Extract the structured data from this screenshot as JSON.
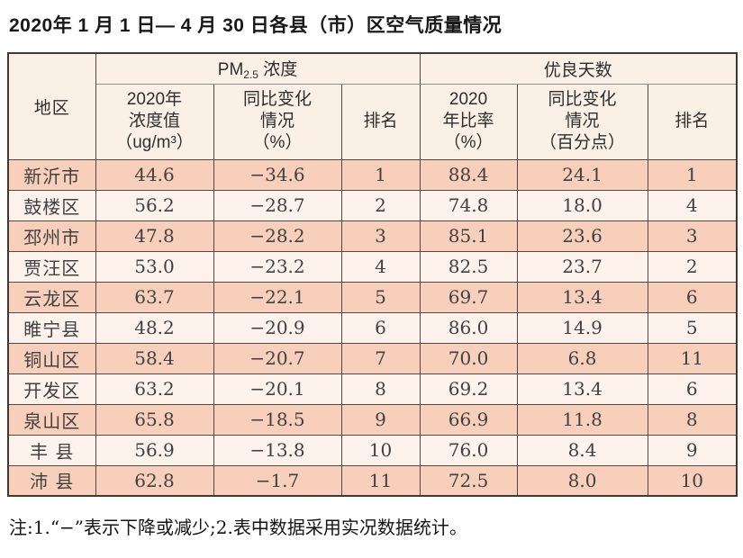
{
  "title": "2020年 1 月 1 日— 4 月 30 日各县（市）区空气质量情况",
  "table": {
    "region_header": "地区",
    "pm_group": {
      "prefix": "PM",
      "sub": "2.5",
      "suffix": " 浓度"
    },
    "good_days_header": "优良天数",
    "sub_headers": [
      "2020年\n浓度值\n（ug/m³）",
      "同比变化\n情况\n（%）",
      "排名",
      "2020\n年比率\n（%）",
      "同比变化\n情况\n（百分点）",
      "排名"
    ],
    "rows": [
      [
        "新沂市",
        "44.6",
        "−34.6",
        "1",
        "88.4",
        "24.1",
        "1"
      ],
      [
        "鼓楼区",
        "56.2",
        "−28.7",
        "2",
        "74.8",
        "18.0",
        "4"
      ],
      [
        "邳州市",
        "47.8",
        "−28.2",
        "3",
        "85.1",
        "23.6",
        "3"
      ],
      [
        "贾汪区",
        "53.0",
        "−23.2",
        "4",
        "82.5",
        "23.7",
        "2"
      ],
      [
        "云龙区",
        "63.7",
        "−22.1",
        "5",
        "69.7",
        "13.4",
        "6"
      ],
      [
        "睢宁县",
        "48.2",
        "−20.9",
        "6",
        "86.0",
        "14.9",
        "5"
      ],
      [
        "铜山区",
        "58.4",
        "−20.7",
        "7",
        "70.0",
        "6.8",
        "11"
      ],
      [
        "开发区",
        "63.2",
        "−20.1",
        "8",
        "69.2",
        "13.4",
        "6"
      ],
      [
        "泉山区",
        "65.8",
        "−18.5",
        "9",
        "66.9",
        "11.8",
        "8"
      ],
      [
        "丰 县",
        "56.9",
        "−13.8",
        "10",
        "76.0",
        "8.4",
        "9"
      ],
      [
        "沛 县",
        "62.8",
        "−1.7",
        "11",
        "72.5",
        "8.0",
        "10"
      ]
    ]
  },
  "footnote": "注:1.“−”表示下降或减少;2.表中数据采用实况数据统计。",
  "colors": {
    "band_dark": "#f8cfba",
    "band_light": "#fdf2ec",
    "header_bg": "#fbf0e5",
    "border": "#43372f"
  }
}
